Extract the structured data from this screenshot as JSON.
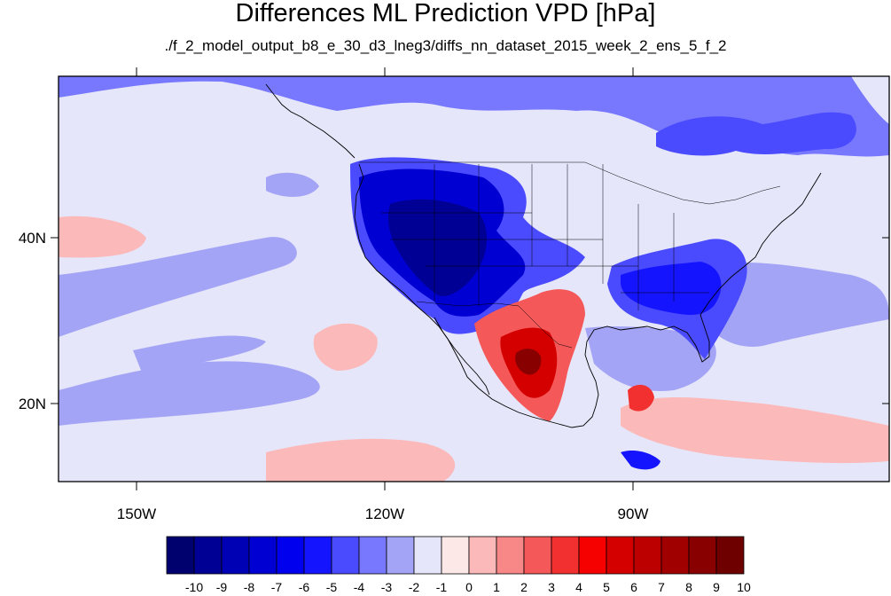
{
  "title": "Differences ML Prediction VPD [hPa]",
  "subtitle": "./f_2_model_output_b8_e_30_d3_lneg3/diffs_nn_dataset_2015_week_2_ens_5_f_2",
  "axes": {
    "lat_labels": [
      "40N",
      "20N"
    ],
    "lon_labels": [
      "150W",
      "120W",
      "90W"
    ]
  },
  "colorbar": {
    "labels": [
      "-10",
      "-9",
      "-8",
      "-7",
      "-6",
      "-5",
      "-4",
      "-3",
      "-2",
      "-1",
      "0",
      "1",
      "2",
      "3",
      "4",
      "5",
      "6",
      "7",
      "8",
      "9",
      "10"
    ],
    "colors": [
      "#00006e",
      "#000094",
      "#0000b4",
      "#0000d2",
      "#0000ee",
      "#1414ff",
      "#4a4aff",
      "#7878ff",
      "#a4a4f6",
      "#e6e6fa",
      "#fde8e8",
      "#fbb9b9",
      "#f88888",
      "#f45858",
      "#f23030",
      "#f60000",
      "#d40000",
      "#bc0000",
      "#a00000",
      "#880000",
      "#6e0000"
    ]
  }
}
